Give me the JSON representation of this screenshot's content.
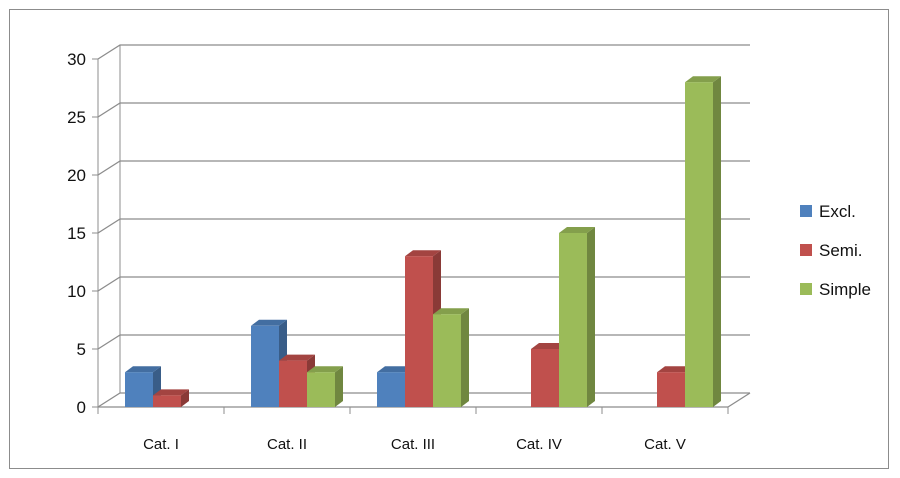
{
  "chart_data": {
    "type": "bar",
    "style": "3d-clustered-column",
    "categories": [
      "Cat. I",
      "Cat. II",
      "Cat. III",
      "Cat. IV",
      "Cat. V"
    ],
    "series": [
      {
        "name": "Excl.",
        "color": "#4f81bd",
        "values": [
          3,
          7,
          3,
          0,
          0
        ]
      },
      {
        "name": "Semi.",
        "color": "#c0504d",
        "values": [
          1,
          4,
          13,
          5,
          3
        ]
      },
      {
        "name": "Simple",
        "color": "#9bbb59",
        "values": [
          0,
          3,
          8,
          15,
          28
        ]
      }
    ],
    "ylim": [
      0,
      30
    ],
    "yticks": [
      0,
      5,
      10,
      15,
      20,
      25,
      30
    ],
    "grid": true,
    "legend": "right",
    "title": "",
    "xlabel": "",
    "ylabel": ""
  }
}
